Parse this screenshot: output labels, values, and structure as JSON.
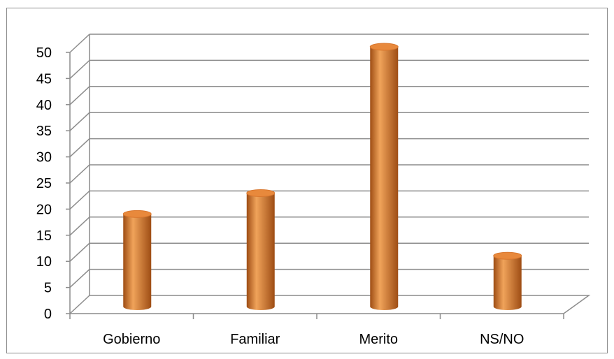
{
  "chart_data": {
    "type": "bar",
    "style": "3d-cylinder",
    "categories": [
      "Gobierno",
      "Familiar",
      "Merito",
      "NS/NO"
    ],
    "values": [
      18,
      22,
      50,
      10
    ],
    "ylim": [
      0,
      50
    ],
    "yticks": [
      0,
      5,
      10,
      15,
      20,
      25,
      30,
      35,
      40,
      45,
      50
    ],
    "ytick_labels": [
      "0",
      "5",
      "10",
      "15",
      "20",
      "25",
      "30",
      "35",
      "40",
      "45",
      "50"
    ],
    "grid": true,
    "legend": "none",
    "colors": {
      "bar_light": "#f0a35a",
      "bar_mid": "#d9772e",
      "bar_dark": "#9e4d14",
      "bar_top": "#e8893c",
      "grid": "#8c8c8c"
    }
  }
}
